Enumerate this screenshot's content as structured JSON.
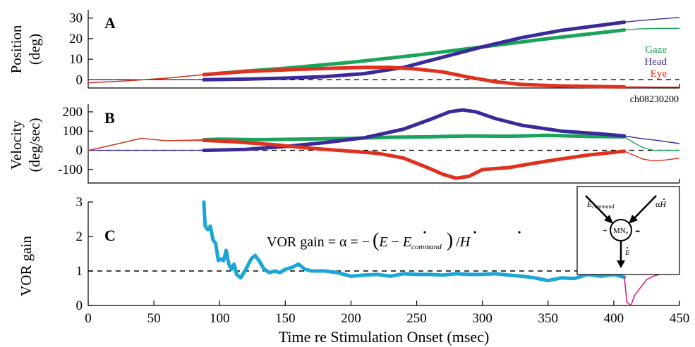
{
  "chart_data": [
    {
      "type": "line",
      "panel_label": "A",
      "ylabel_line1": "Position",
      "ylabel_line2": "(deg)",
      "ylim": [
        -4,
        34
      ],
      "yticks": [
        0,
        10,
        20,
        30
      ],
      "xlim": [
        0,
        450
      ],
      "record_id": "ch08230200",
      "reference_line": 0,
      "series": [
        {
          "name": "Gaze",
          "color": "#1aa35a",
          "x": [
            0,
            30,
            60,
            88,
            120,
            150,
            200,
            250,
            300,
            350,
            408
          ],
          "y": [
            -1.5,
            -0.5,
            0.8,
            2.5,
            4.2,
            5.6,
            8.5,
            12,
            16,
            20,
            24.2
          ],
          "tail_x": [
            408,
            420,
            435,
            450
          ],
          "tail_y": [
            24.2,
            24.8,
            25,
            25
          ]
        },
        {
          "name": "Head",
          "color": "#3a2a9a",
          "x": [
            0,
            30,
            60,
            88,
            120,
            150,
            180,
            210,
            240,
            270,
            300,
            330,
            360,
            390,
            408
          ],
          "y": [
            0,
            0,
            0,
            0,
            0.3,
            0.8,
            1.5,
            3,
            6,
            11,
            16,
            20.5,
            24,
            26.5,
            28
          ],
          "tail_x": [
            408,
            420,
            435,
            450
          ],
          "tail_y": [
            28,
            28.8,
            29.6,
            30.3
          ]
        },
        {
          "name": "Eye",
          "color": "#e0301e",
          "x": [
            0,
            30,
            60,
            88,
            120,
            150,
            180,
            210,
            230,
            250,
            270,
            290,
            310,
            330,
            360,
            408
          ],
          "y": [
            -1.5,
            -0.5,
            0.8,
            2.5,
            4,
            4.8,
            5.5,
            6,
            6,
            5.2,
            3.8,
            1.2,
            -1,
            -2.3,
            -3,
            -3.5
          ],
          "tail_x": [
            408,
            420,
            435,
            450
          ],
          "tail_y": [
            -3.5,
            -3.5,
            -3.6,
            -3.6
          ]
        }
      ]
    },
    {
      "type": "line",
      "panel_label": "B",
      "ylabel_line1": "Velocity",
      "ylabel_line2": "(deg/sec)",
      "ylim": [
        -170,
        240
      ],
      "yticks": [
        -100,
        0,
        100,
        200
      ],
      "xlim": [
        0,
        450
      ],
      "reference_line": 0,
      "series": [
        {
          "name": "Gaze",
          "color": "#1aa35a",
          "x": [
            0,
            20,
            40,
            60,
            88,
            100,
            130,
            160,
            200,
            230,
            260,
            290,
            320,
            350,
            380,
            408
          ],
          "y": [
            0,
            30,
            62,
            50,
            55,
            58,
            55,
            58,
            62,
            68,
            70,
            75,
            73,
            78,
            72,
            70
          ],
          "tail_x": [
            408,
            415,
            422,
            430,
            440,
            450
          ],
          "tail_y": [
            70,
            40,
            15,
            0,
            0,
            0
          ]
        },
        {
          "name": "Head",
          "color": "#3a2a9a",
          "x": [
            0,
            40,
            80,
            88,
            120,
            150,
            180,
            210,
            240,
            260,
            275,
            285,
            295,
            310,
            330,
            360,
            390,
            408
          ],
          "y": [
            0,
            0,
            0,
            0,
            5,
            20,
            40,
            65,
            110,
            160,
            200,
            210,
            200,
            165,
            130,
            100,
            85,
            75
          ],
          "tail_x": [
            408,
            420,
            435,
            450
          ],
          "tail_y": [
            75,
            62,
            50,
            35
          ]
        },
        {
          "name": "Eye",
          "color": "#e0301e",
          "x": [
            0,
            20,
            40,
            60,
            88,
            110,
            140,
            170,
            200,
            220,
            240,
            260,
            270,
            280,
            290,
            300,
            320,
            350,
            380,
            408
          ],
          "y": [
            0,
            30,
            62,
            50,
            52,
            45,
            30,
            10,
            -5,
            -15,
            -40,
            -95,
            -125,
            -145,
            -135,
            -100,
            -90,
            -55,
            -25,
            -5
          ],
          "tail_x": [
            408,
            415,
            422,
            430,
            440,
            450
          ],
          "tail_y": [
            -5,
            -25,
            -45,
            -55,
            -50,
            -40
          ]
        }
      ]
    },
    {
      "type": "line",
      "panel_label": "C",
      "ylabel": "VOR gain",
      "ylim": [
        0,
        3
      ],
      "yticks": [
        0,
        1,
        2,
        3
      ],
      "xlim": [
        0,
        450
      ],
      "xticks": [
        0,
        50,
        100,
        150,
        200,
        250,
        300,
        350,
        400,
        450
      ],
      "xlabel": "Time re Stimulation Onset (msec)",
      "reference_line": 1,
      "equation": {
        "prefix": "VOR gain = α = −",
        "E": "E",
        "minus": " − ",
        "Ecmd": "E",
        "cmd_sub": "command",
        "suffix_slash": "/",
        "H": "H"
      },
      "series": [
        {
          "name": "gain",
          "color": "#1aa6d6",
          "x": [
            88,
            89,
            91,
            93,
            95,
            97,
            99,
            101,
            103,
            105,
            107,
            109,
            111,
            113,
            116,
            120,
            124,
            127,
            130,
            134,
            138,
            142,
            146,
            150,
            155,
            160,
            165,
            170,
            180,
            190,
            200,
            210,
            220,
            230,
            240,
            250,
            260,
            270,
            280,
            290,
            300,
            310,
            320,
            330,
            340,
            350,
            360,
            370,
            380,
            390,
            400,
            408
          ],
          "y": [
            3,
            2.3,
            2.2,
            2.3,
            1.9,
            1.8,
            1.3,
            1.35,
            1.3,
            1.6,
            1.2,
            1.05,
            1.2,
            0.9,
            0.8,
            1.05,
            1.35,
            1.45,
            1.3,
            1.05,
            0.95,
            1.0,
            0.95,
            1.05,
            1.1,
            1.2,
            1.05,
            1.0,
            1.0,
            0.95,
            0.85,
            0.88,
            0.9,
            0.85,
            0.92,
            0.9,
            0.9,
            0.88,
            0.92,
            0.9,
            0.9,
            0.92,
            0.88,
            0.85,
            0.8,
            0.72,
            0.8,
            0.78,
            0.9,
            0.85,
            0.9,
            0.82
          ]
        },
        {
          "name": "gain-tail",
          "color": "#d4208c",
          "x": [
            408,
            410,
            413,
            416,
            420,
            425,
            430,
            435,
            440,
            445,
            450
          ],
          "y": [
            0.82,
            0.1,
            0.0,
            0.3,
            0.5,
            0.75,
            0.85,
            0.9,
            0.95,
            1.0,
            1.05
          ]
        }
      ]
    }
  ],
  "inset": {
    "input_left_symbol": "E",
    "input_left_sub": "command",
    "input_right_prefix": "α",
    "input_right_symbol": "H",
    "node_label": "MN",
    "node_sub": "e",
    "plus_sign": "+",
    "minus_sign": "-",
    "output_symbol": "E"
  }
}
